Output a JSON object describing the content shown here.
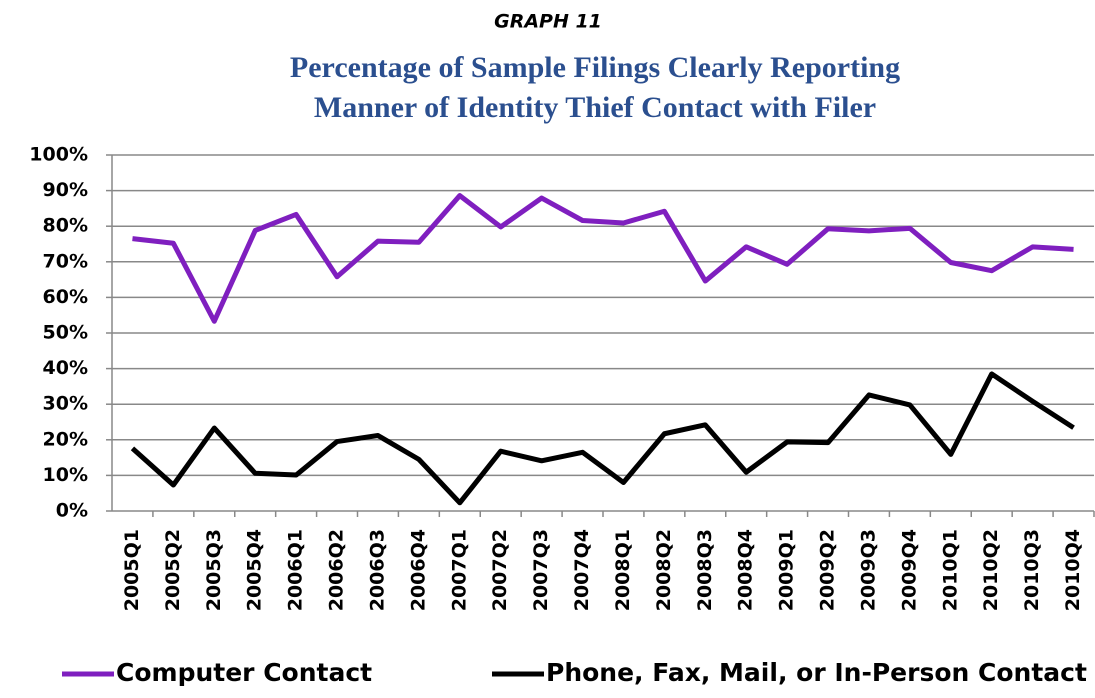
{
  "chart_data": {
    "type": "line",
    "supertitle": "GRAPH 11",
    "title": "Percentage of Sample Filings Clearly Reporting",
    "title_line2": "Manner of Identity Thief Contact with Filer",
    "categories": [
      "2005Q1",
      "2005Q2",
      "2005Q3",
      "2005Q4",
      "2006Q1",
      "2006Q2",
      "2006Q3",
      "2006Q4",
      "2007Q1",
      "2007Q2",
      "2007Q3",
      "2007Q4",
      "2008Q1",
      "2008Q2",
      "2008Q3",
      "2008Q4",
      "2009Q1",
      "2009Q2",
      "2009Q3",
      "2009Q4",
      "2010Q1",
      "2010Q2",
      "2010Q3",
      "2010Q4"
    ],
    "series": [
      {
        "name": "Computer Contact",
        "color": "#7f1fbf",
        "values": [
          76.5,
          75.2,
          53.3,
          78.8,
          83.3,
          65.8,
          75.8,
          75.5,
          88.6,
          79.8,
          87.9,
          81.6,
          80.9,
          84.2,
          64.6,
          74.2,
          69.3,
          79.3,
          78.7,
          79.4,
          69.8,
          67.5,
          74.2,
          73.5
        ]
      },
      {
        "name": "Phone, Fax, Mail, or In-Person Contact",
        "color": "#000000",
        "values": [
          17.6,
          7.3,
          23.3,
          10.6,
          10.1,
          19.5,
          21.2,
          14.5,
          2.3,
          16.8,
          14.1,
          16.5,
          8.0,
          21.7,
          24.2,
          10.9,
          19.4,
          19.2,
          32.6,
          29.8,
          15.9,
          38.5,
          30.8,
          23.4
        ]
      }
    ],
    "ylim": [
      0,
      100
    ],
    "yticks": [
      {
        "value": 0,
        "label": "0%"
      },
      {
        "value": 10,
        "label": "10%"
      },
      {
        "value": 20,
        "label": "20%"
      },
      {
        "value": 30,
        "label": "30%"
      },
      {
        "value": 40,
        "label": "40%"
      },
      {
        "value": 50,
        "label": "50%"
      },
      {
        "value": 60,
        "label": "60%"
      },
      {
        "value": 70,
        "label": "70%"
      },
      {
        "value": 80,
        "label": "80%"
      },
      {
        "value": 90,
        "label": "90%"
      },
      {
        "value": 100,
        "label": "100%"
      }
    ],
    "grid": true,
    "legend": "bottom"
  }
}
